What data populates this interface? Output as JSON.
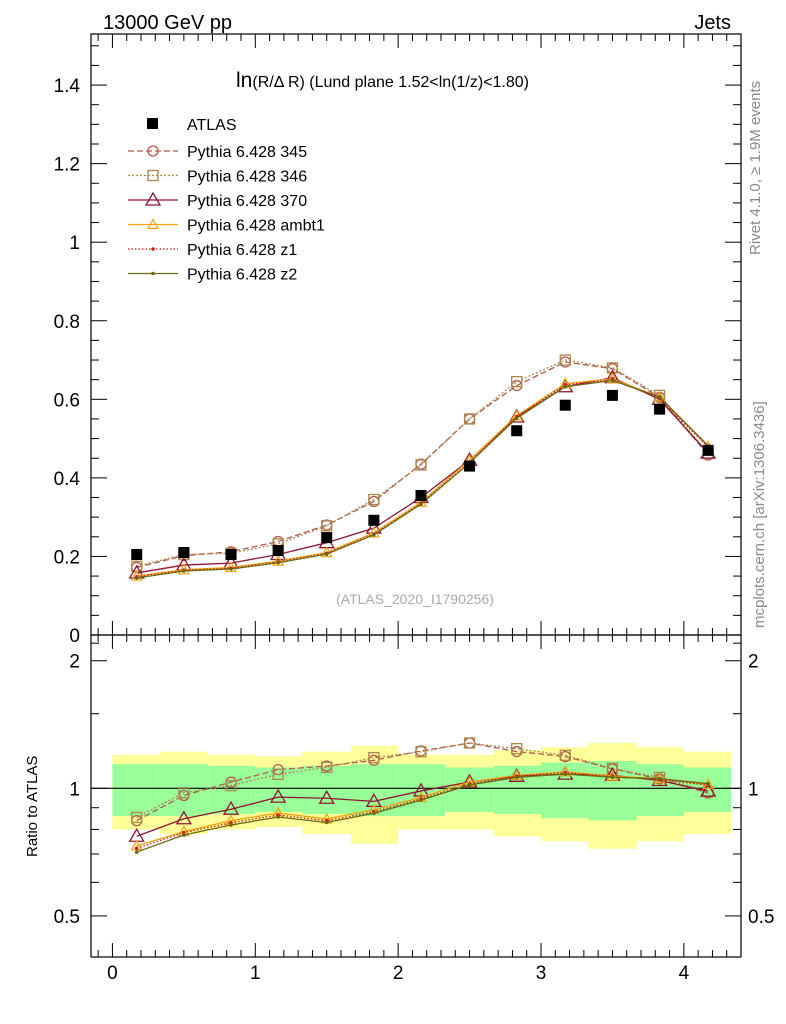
{
  "header": {
    "energy_label": "13000 GeV pp",
    "process_label": "Jets",
    "rivet_label": "Rivet 4.1.0, ≥ 1.9M events",
    "mcplots_label": "mcplots.cern.ch [arXiv:1306.3436]",
    "analysis_label": "(ATLAS_2020_I1790256)"
  },
  "chart_data": {
    "type": "line",
    "title_ln": "ln",
    "title_rest": "(R/Δ R) (Lund plane 1.52<ln(1/z)<1.80)",
    "ylabel_ratio": "Ratio to ATLAS",
    "xlim": [
      -0.15,
      4.4
    ],
    "ylim_main": [
      0,
      1.53
    ],
    "ylim_ratio": [
      0.4,
      2.3
    ],
    "x_ticks": [
      0,
      1,
      2,
      3,
      4
    ],
    "x_tick_labels": [
      "0",
      "1",
      "2",
      "3",
      "4"
    ],
    "y_ticks_main": [
      0.2,
      0.4,
      0.6,
      0.8,
      1,
      1.2,
      1.4
    ],
    "y_tick_labels_main": [
      "0.2",
      "0.4",
      "0.6",
      "0.8",
      "1",
      "1.2",
      "1.4"
    ],
    "y_zero_label": "0",
    "y_ticks_ratio": [
      0.5,
      1,
      2
    ],
    "y_tick_labels_ratio": [
      "0.5",
      "1",
      "2"
    ],
    "x": [
      0.17,
      0.5,
      0.83,
      1.16,
      1.5,
      1.83,
      2.16,
      2.5,
      2.83,
      3.17,
      3.5,
      3.83,
      4.17
    ],
    "bin_edges": [
      0.0,
      0.33,
      0.67,
      1.0,
      1.33,
      1.67,
      2.0,
      2.33,
      2.67,
      3.0,
      3.33,
      3.67,
      4.0,
      4.33
    ],
    "data": {
      "name": "ATLAS",
      "values": [
        0.205,
        0.21,
        0.205,
        0.215,
        0.248,
        0.292,
        0.355,
        0.43,
        0.52,
        0.585,
        0.61,
        0.575,
        0.47
      ]
    },
    "band_green": [
      0.14,
      0.14,
      0.13,
      0.12,
      0.13,
      0.14,
      0.14,
      0.12,
      0.13,
      0.15,
      0.16,
      0.14,
      0.12
    ],
    "band_yellow": [
      0.2,
      0.22,
      0.2,
      0.19,
      0.22,
      0.26,
      0.2,
      0.2,
      0.23,
      0.25,
      0.28,
      0.25,
      0.22
    ],
    "series": [
      {
        "name": "Pythia 6.428 345",
        "color": "#b5584e",
        "dash": "6,3",
        "marker": "circle",
        "values": [
          0.172,
          0.202,
          0.212,
          0.238,
          0.28,
          0.34,
          0.435,
          0.55,
          0.635,
          0.695,
          0.678,
          0.605,
          0.458
        ]
      },
      {
        "name": "Pythia 6.428 346",
        "color": "#a8894a",
        "dash": "2,2",
        "marker": "square",
        "values": [
          0.175,
          0.205,
          0.208,
          0.232,
          0.278,
          0.345,
          0.433,
          0.55,
          0.645,
          0.7,
          0.68,
          0.61,
          0.462
        ]
      },
      {
        "name": "Pythia 6.428 370",
        "color": "#8e1530",
        "dash": "",
        "marker": "triangle",
        "values": [
          0.158,
          0.178,
          0.183,
          0.205,
          0.235,
          0.272,
          0.35,
          0.445,
          0.555,
          0.632,
          0.655,
          0.6,
          0.463
        ]
      },
      {
        "name": "Pythia 6.428 ambt1",
        "color": "#f0a20c",
        "dash": "",
        "marker": "triangle-small",
        "values": [
          0.15,
          0.166,
          0.172,
          0.188,
          0.21,
          0.26,
          0.338,
          0.445,
          0.558,
          0.64,
          0.652,
          0.606,
          0.48
        ]
      },
      {
        "name": "Pythia 6.428 z1",
        "color": "#cc1a1a",
        "dash": "1.5,2",
        "marker": "dot",
        "values": [
          0.148,
          0.165,
          0.17,
          0.186,
          0.208,
          0.257,
          0.335,
          0.44,
          0.556,
          0.637,
          0.65,
          0.603,
          0.478
        ]
      },
      {
        "name": "Pythia 6.428 z2",
        "color": "#6b6a12",
        "dash": "",
        "marker": "dot",
        "values": [
          0.145,
          0.163,
          0.168,
          0.184,
          0.206,
          0.255,
          0.333,
          0.438,
          0.552,
          0.632,
          0.648,
          0.606,
          0.482
        ]
      }
    ]
  }
}
